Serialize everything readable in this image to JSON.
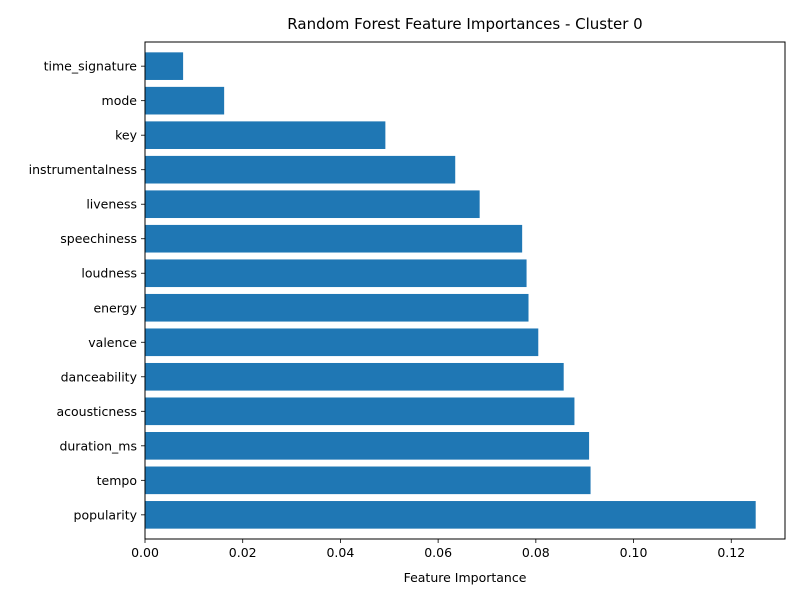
{
  "chart_data": {
    "type": "bar",
    "orientation": "horizontal",
    "title": "Random Forest Feature Importances - Cluster 0",
    "xlabel": "Feature Importance",
    "ylabel": "",
    "xlim": [
      0,
      0.131
    ],
    "x_ticks": [
      0.0,
      0.02,
      0.04,
      0.06,
      0.08,
      0.1,
      0.12
    ],
    "x_tick_labels": [
      "0.00",
      "0.02",
      "0.04",
      "0.06",
      "0.08",
      "0.10",
      "0.12"
    ],
    "grid": false,
    "bar_color": "#1f77b4",
    "categories": [
      "popularity",
      "tempo",
      "duration_ms",
      "acousticness",
      "danceability",
      "valence",
      "energy",
      "loudness",
      "speechiness",
      "liveness",
      "instrumentalness",
      "key",
      "mode",
      "time_signature"
    ],
    "values": [
      0.125,
      0.0912,
      0.0909,
      0.0879,
      0.0857,
      0.0805,
      0.0785,
      0.0781,
      0.0772,
      0.0685,
      0.0635,
      0.0492,
      0.0162,
      0.0078
    ]
  }
}
